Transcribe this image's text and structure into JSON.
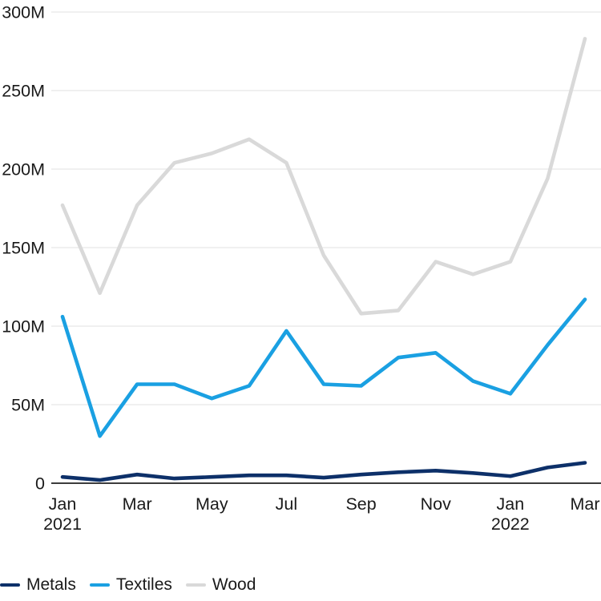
{
  "chart_data": {
    "type": "line",
    "title": "",
    "xlabel": "",
    "ylabel": "",
    "unit": "M",
    "ylim": [
      0,
      300
    ],
    "grid": "horizontal",
    "legend_position": "bottom-left",
    "categories": [
      "Jan 2021",
      "Feb 2021",
      "Mar 2021",
      "Apr 2021",
      "May 2021",
      "Jun 2021",
      "Jul 2021",
      "Aug 2021",
      "Sep 2021",
      "Oct 2021",
      "Nov 2021",
      "Dec 2021",
      "Jan 2022",
      "Feb 2022",
      "Mar 2022"
    ],
    "y_ticks": [
      {
        "value": 0,
        "label": "0"
      },
      {
        "value": 50,
        "label": "50M"
      },
      {
        "value": 100,
        "label": "100M"
      },
      {
        "value": 150,
        "label": "150M"
      },
      {
        "value": 200,
        "label": "200M"
      },
      {
        "value": 250,
        "label": "250M"
      },
      {
        "value": 300,
        "label": "300M"
      }
    ],
    "x_tick_labels": [
      {
        "index": 0,
        "label": "Jan",
        "sublabel": "2021"
      },
      {
        "index": 2,
        "label": "Mar"
      },
      {
        "index": 4,
        "label": "May"
      },
      {
        "index": 6,
        "label": "Jul"
      },
      {
        "index": 8,
        "label": "Sep"
      },
      {
        "index": 10,
        "label": "Nov"
      },
      {
        "index": 12,
        "label": "Jan",
        "sublabel": "2022"
      },
      {
        "index": 14,
        "label": "Mar"
      }
    ],
    "series": [
      {
        "name": "Metals",
        "color": "#0d3069",
        "values": [
          4,
          2,
          5.5,
          3,
          4,
          5,
          5,
          3.5,
          5.5,
          7,
          8,
          6.5,
          4.5,
          10,
          13
        ]
      },
      {
        "name": "Textiles",
        "color": "#1aa0e2",
        "values": [
          106,
          30,
          63,
          63,
          54,
          62,
          97,
          63,
          62,
          80,
          83,
          65,
          57,
          88,
          117
        ]
      },
      {
        "name": "Wood",
        "color": "#d9d9d9",
        "values": [
          177,
          121,
          177,
          204,
          210,
          219,
          204,
          145,
          108,
          110,
          141,
          133,
          141,
          194,
          283
        ]
      }
    ]
  },
  "colors": {
    "background": "#ffffff",
    "gridline": "#e7e7e7",
    "axis_line": "#3c3c3c",
    "text": "#1a1a1a"
  }
}
